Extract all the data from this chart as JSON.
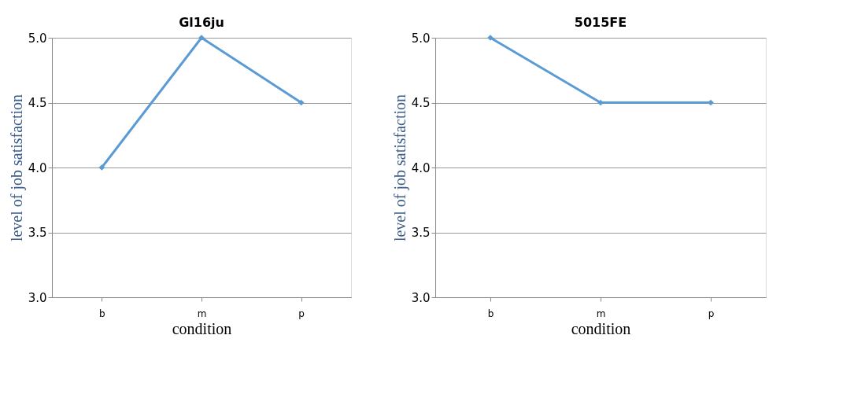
{
  "chart_data": [
    {
      "type": "line",
      "title": "Gl16ju",
      "xlabel": "condition",
      "ylabel": "level of job satisfaction",
      "categories": [
        "b",
        "m",
        "p"
      ],
      "series": [
        {
          "color": "#5b9bd5",
          "values": [
            4.0,
            5.0,
            4.5
          ]
        }
      ],
      "ylim": [
        3,
        5
      ],
      "yticks": [
        {
          "value": 3,
          "label": "3.0"
        },
        {
          "value": 3.5,
          "label": "3.5"
        },
        {
          "value": 4,
          "label": "4.0"
        },
        {
          "value": 4.5,
          "label": "4.5"
        },
        {
          "value": 5,
          "label": "5.0"
        }
      ],
      "grid": "y",
      "marker": "diamond"
    },
    {
      "type": "line",
      "title": "5015FE",
      "xlabel": "condition",
      "ylabel": "level of job satisfaction",
      "categories": [
        "b",
        "m",
        "p"
      ],
      "series": [
        {
          "color": "#5b9bd5",
          "values": [
            5.0,
            4.5,
            4.5
          ]
        }
      ],
      "ylim": [
        3,
        5
      ],
      "yticks": [
        {
          "value": 3,
          "label": "3.0"
        },
        {
          "value": 3.5,
          "label": "3.5"
        },
        {
          "value": 4,
          "label": "4.0"
        },
        {
          "value": 4.5,
          "label": "4.5"
        },
        {
          "value": 5,
          "label": "5.0"
        }
      ],
      "grid": "y",
      "marker": "diamond"
    }
  ]
}
